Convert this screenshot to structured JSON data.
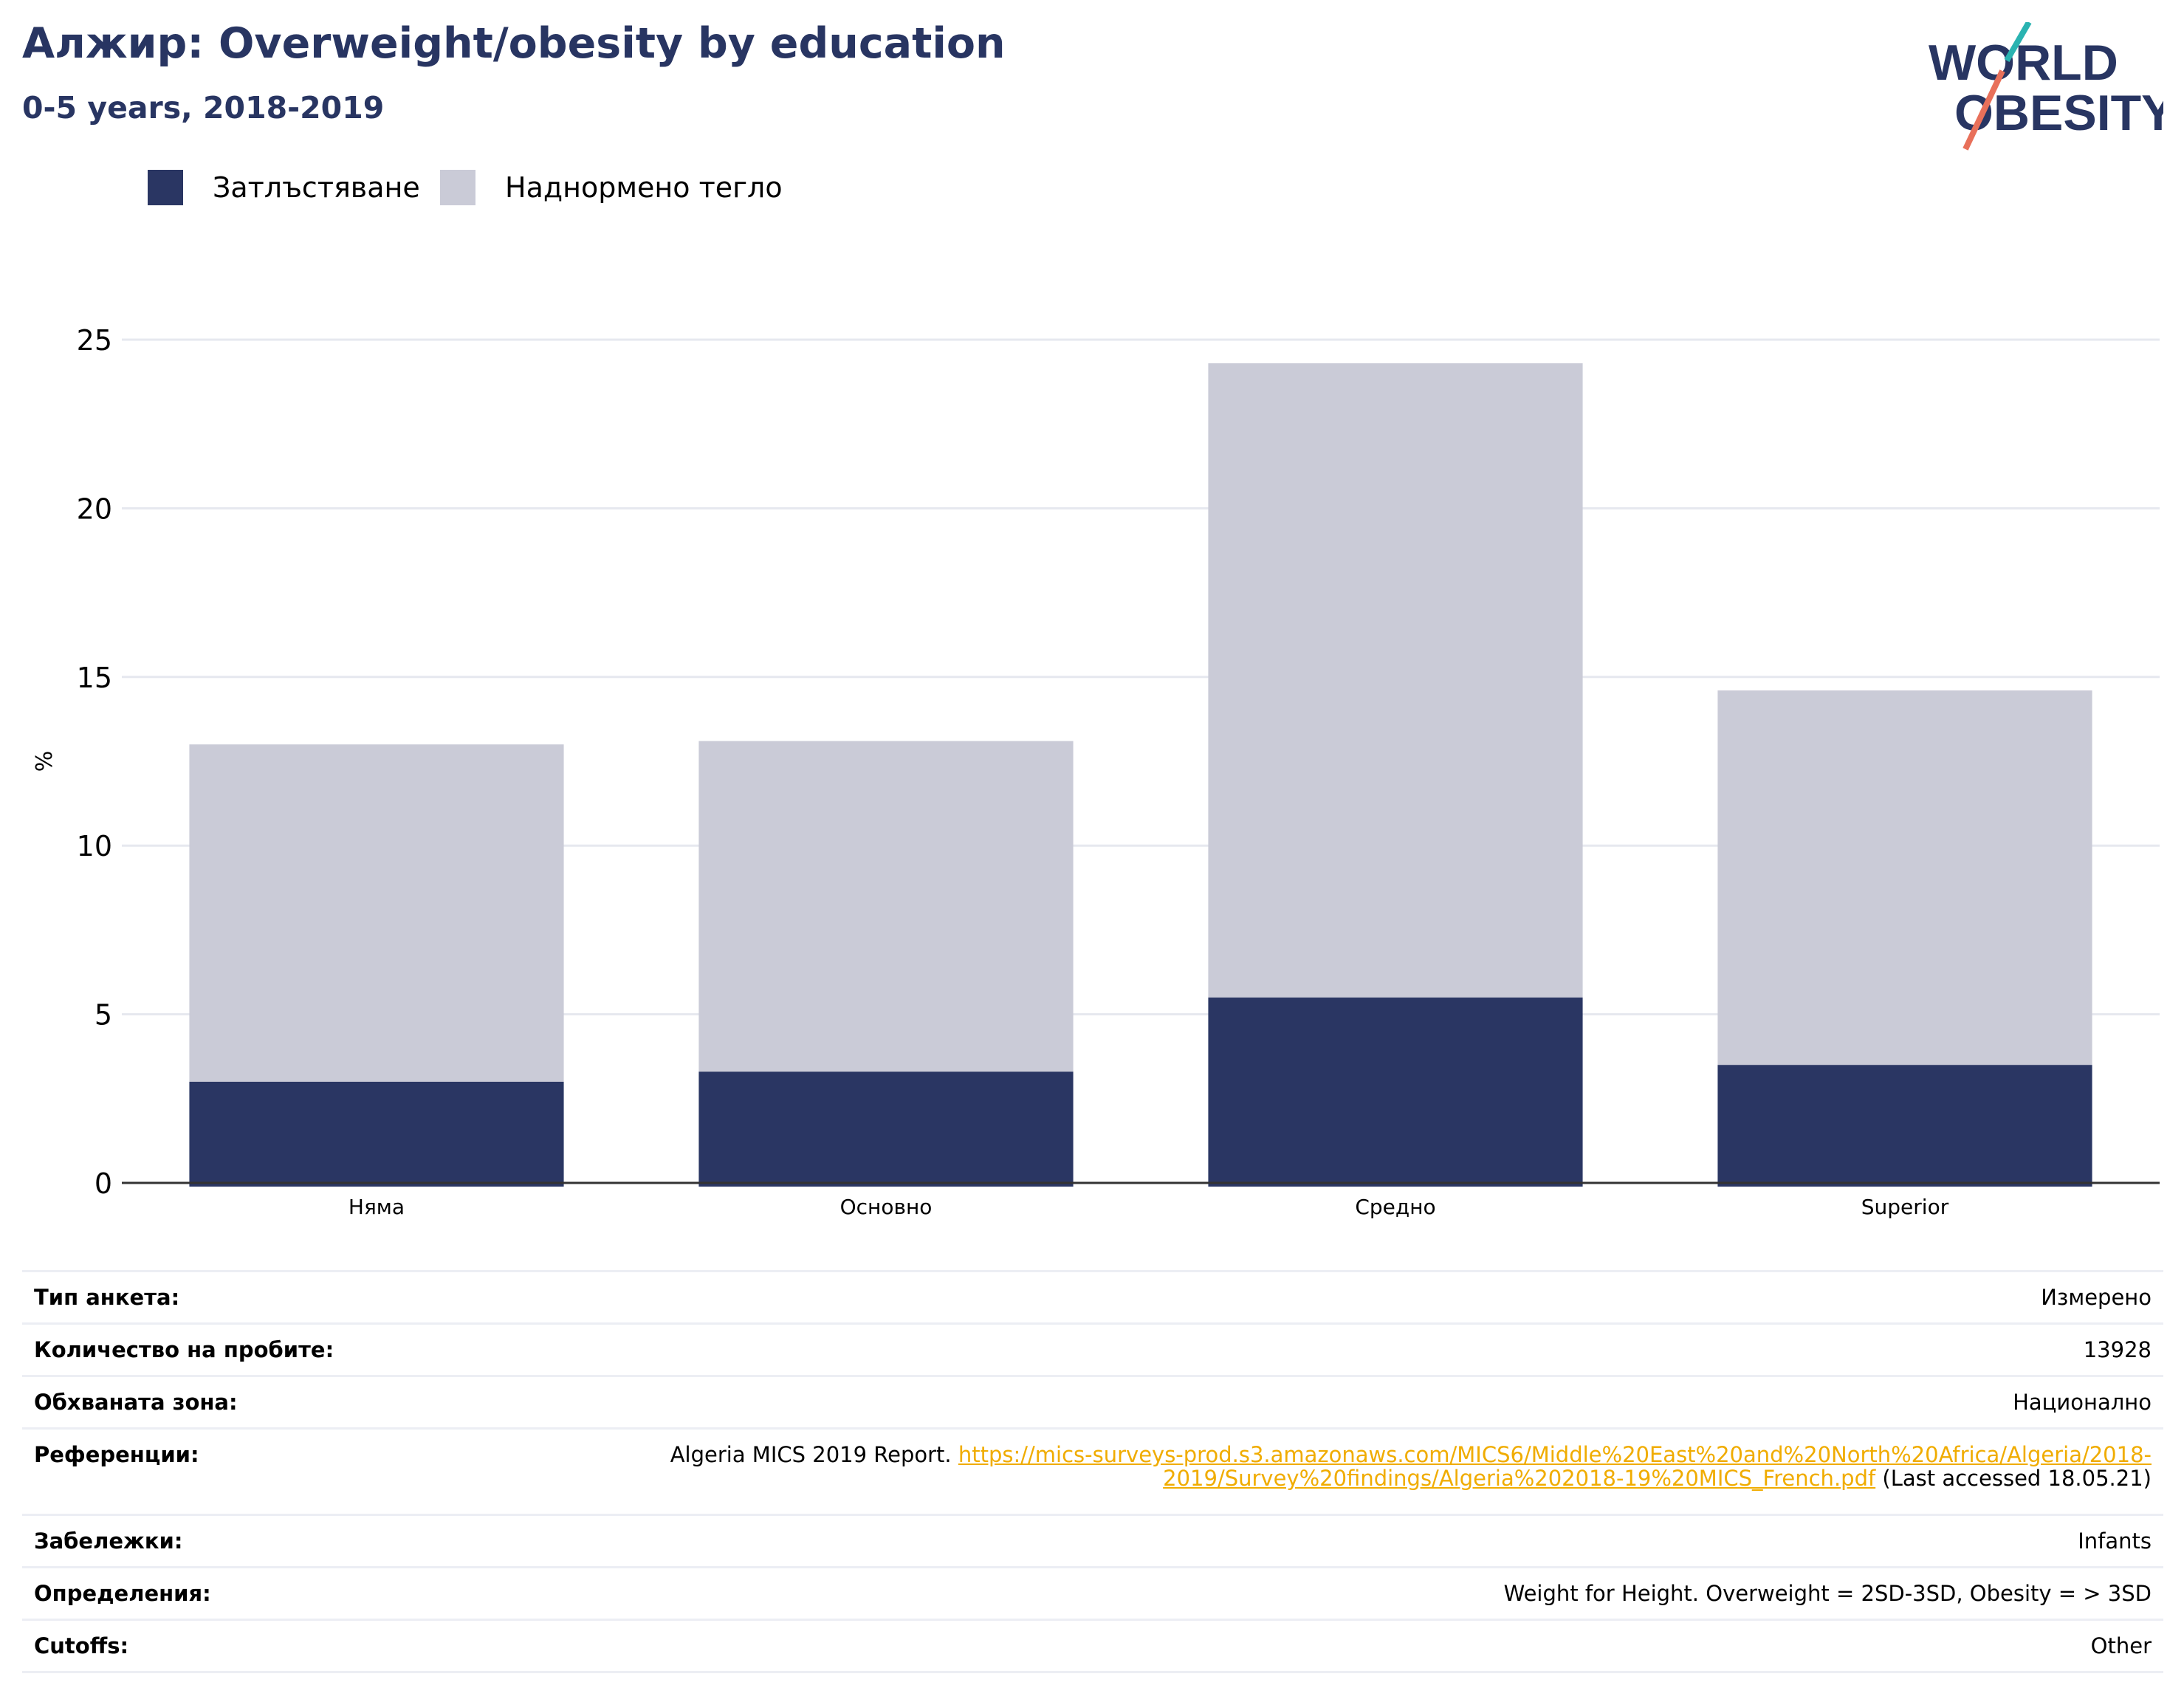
{
  "header": {
    "title": "Алжир: Overweight/obesity by education",
    "subtitle": "0-5 years, 2018-2019"
  },
  "logo": {
    "line1": "WORLD",
    "line2": "OBESITY",
    "colors": {
      "text": "#283562",
      "slash_top": "#2ab3b1",
      "slash_bottom": "#e8705a"
    }
  },
  "chart_data": {
    "type": "bar",
    "stacked": true,
    "categories": [
      "Няма",
      "Основно",
      "Средно",
      "Superior"
    ],
    "series": [
      {
        "name": "Затлъстяване",
        "color": "#2a3663",
        "values": [
          3.0,
          3.3,
          5.5,
          3.5
        ]
      },
      {
        "name": "Наднормено тегло",
        "color": "#cacbd7",
        "values": [
          10.0,
          9.8,
          18.8,
          11.1
        ]
      }
    ],
    "ylabel": "%",
    "xlabel": "",
    "ylim": [
      0,
      25
    ],
    "yticks": [
      0,
      5,
      10,
      15,
      20,
      25
    ],
    "grid": true,
    "legend_position": "top-left"
  },
  "info": {
    "rows": [
      {
        "label": "Тип анкета:",
        "value": "Измерено"
      },
      {
        "label": "Количество на пробите:",
        "value": "13928"
      },
      {
        "label": "Обхваната зона:",
        "value": "Национално"
      },
      {
        "label": "Референции:",
        "value_prefix": "Algeria MICS 2019 Report. ",
        "link_line1": "https://mics-surveys-prod.s3.amazonaws.com/MICS6/Middle%20East%20and%20North%20Africa/Algeria/2018-",
        "link_line2": "2019/Survey%20findings/Algeria%202018-19%20MICS_French.pdf",
        "value_suffix": " (Last accessed 18.05.21)"
      },
      {
        "label": "Забележки:",
        "value": "Infants"
      },
      {
        "label": "Определения:",
        "value": "Weight for Height. Overweight = 2SD-3SD, Obesity = > 3SD"
      },
      {
        "label": "Cutoffs:",
        "value": "Other"
      }
    ]
  }
}
